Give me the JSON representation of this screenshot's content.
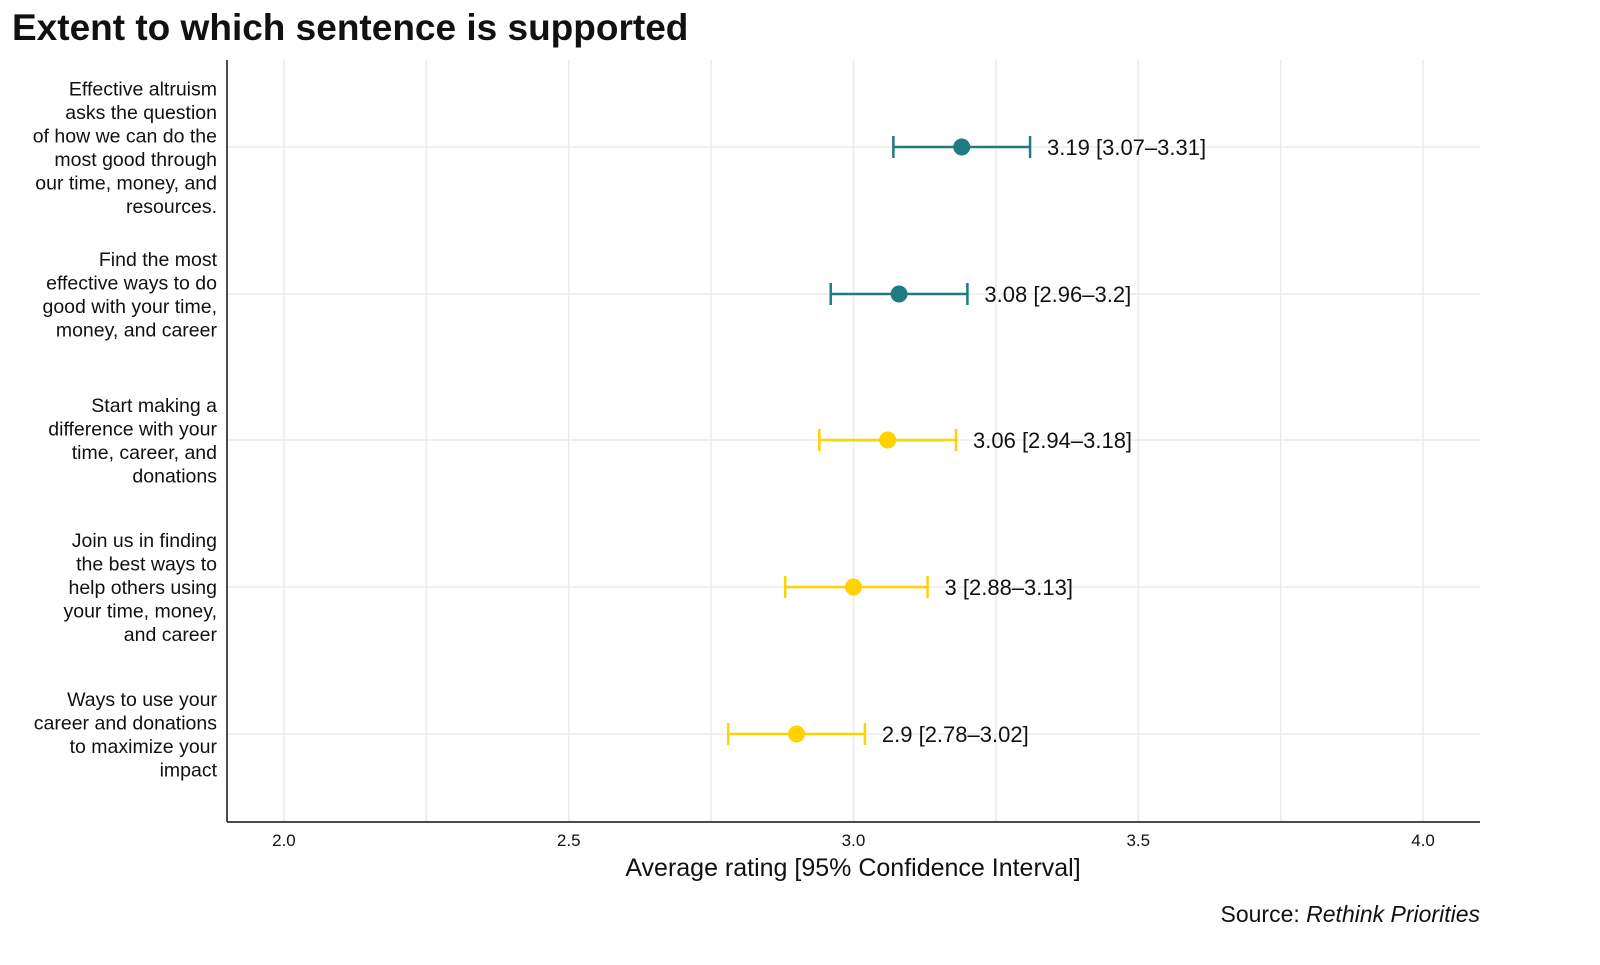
{
  "chart_data": {
    "type": "errorbar",
    "title": "Extent to which sentence is supported",
    "xlabel": "Average rating [95% Confidence Interval]",
    "ylabel": "",
    "xlim": [
      1.9,
      4.1
    ],
    "xticks": [
      2.0,
      2.5,
      3.0,
      3.5,
      4.0
    ],
    "xtick_labels": [
      "2.0",
      "2.5",
      "3.0",
      "3.5",
      "4.0"
    ],
    "grid": true,
    "source_prefix": "Source: ",
    "source_name": "Rethink Priorities",
    "colors": {
      "teal": "#1e7b80",
      "yellow": "#ffd200",
      "grid": "#ebebeb"
    },
    "items": [
      {
        "label_lines": [
          "Effective altruism",
          "asks the question",
          "of how we can do the",
          "most good through",
          "our time, money, and",
          "resources."
        ],
        "mean": 3.19,
        "low": 3.07,
        "high": 3.31,
        "data_label": "3.19 [3.07–3.31]",
        "color": "#1e7b80"
      },
      {
        "label_lines": [
          "Find the most",
          "effective ways to do",
          "good with your time,",
          "money, and career"
        ],
        "mean": 3.08,
        "low": 2.96,
        "high": 3.2,
        "data_label": "3.08 [2.96–3.2]",
        "color": "#1e7b80"
      },
      {
        "label_lines": [
          "Start making a",
          "difference with your",
          "time, career, and",
          "donations"
        ],
        "mean": 3.06,
        "low": 2.94,
        "high": 3.18,
        "data_label": "3.06 [2.94–3.18]",
        "color": "#ffd200"
      },
      {
        "label_lines": [
          "Join us in finding",
          "the best ways to",
          "help others using",
          "your time, money,",
          "and career"
        ],
        "mean": 3.0,
        "low": 2.88,
        "high": 3.13,
        "data_label": "3 [2.88–3.13]",
        "color": "#ffd200"
      },
      {
        "label_lines": [
          "Ways to use your",
          "career and donations",
          "to maximize your",
          "impact"
        ],
        "mean": 2.9,
        "low": 2.78,
        "high": 3.02,
        "data_label": "2.9 [2.78–3.02]",
        "color": "#ffd200"
      }
    ]
  }
}
